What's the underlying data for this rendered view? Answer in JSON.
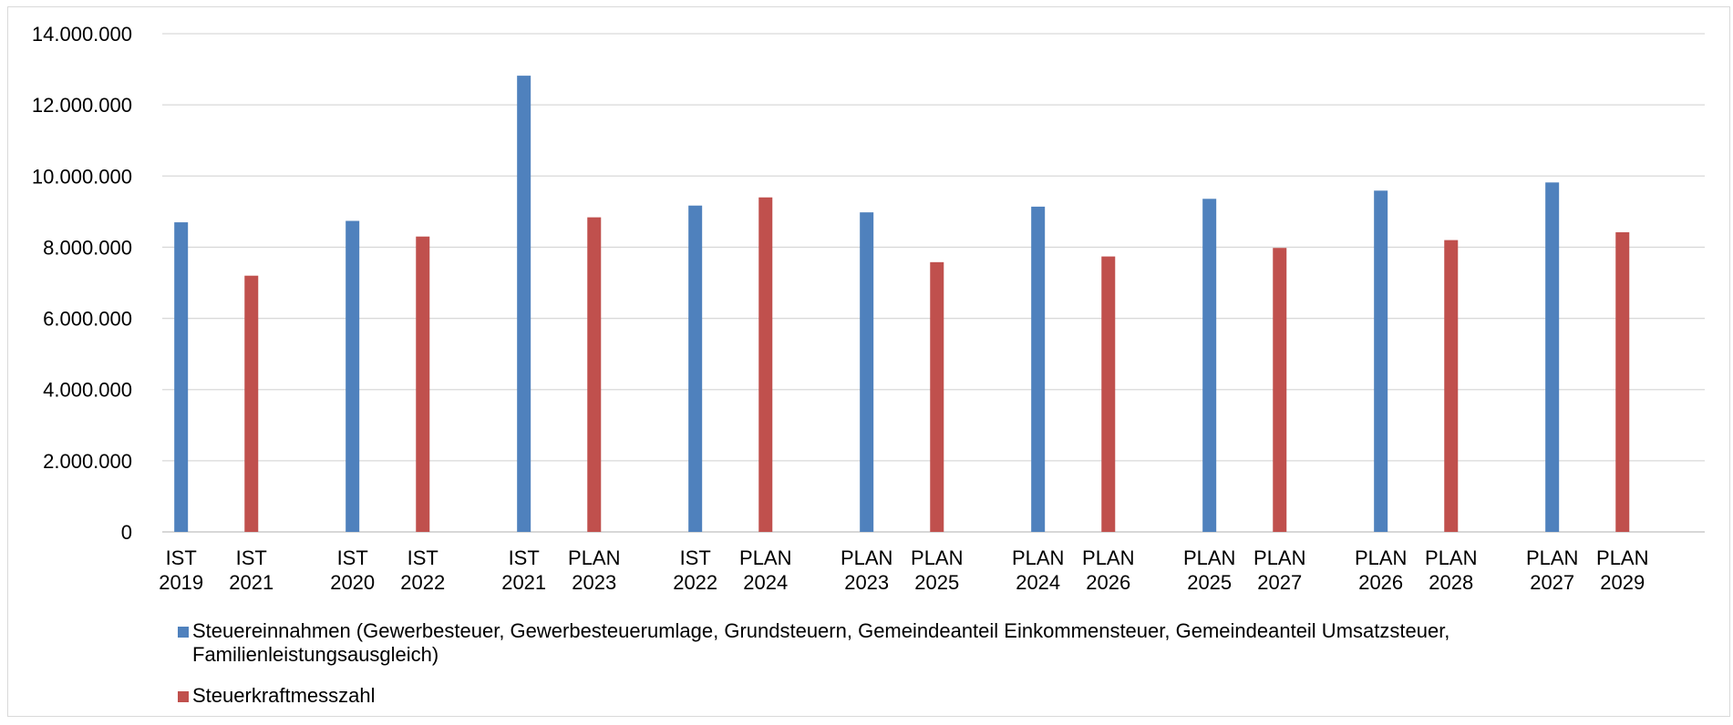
{
  "chart_data": {
    "type": "bar",
    "categories": [
      [
        "IST 2019",
        "IST 2021"
      ],
      [
        "IST 2020",
        "IST 2022"
      ],
      [
        "IST 2021",
        "PLAN 2023"
      ],
      [
        "IST 2022",
        "PLAN 2024"
      ],
      [
        "PLAN 2023",
        "PLAN 2025"
      ],
      [
        "PLAN 2024",
        "PLAN 2026"
      ],
      [
        "PLAN 2025",
        "PLAN 2027"
      ],
      [
        "PLAN 2026",
        "PLAN 2028"
      ],
      [
        "PLAN 2027",
        "PLAN 2029"
      ]
    ],
    "series": [
      {
        "name": "Steuereinnahmen (Gewerbesteuer, Gewerbesteuerumlage, Grundsteuern, Gemeindeanteil Einkommensteuer, Gemeindeanteil Umsatzsteuer, Familienleistungsausgleich)",
        "color": "#4f81bd",
        "values": [
          8700000,
          8740000,
          12820000,
          9170000,
          8980000,
          9140000,
          9360000,
          9590000,
          9820000
        ]
      },
      {
        "name": "Steuerkraftmesszahl",
        "color": "#c0504d",
        "values": [
          7200000,
          8300000,
          8840000,
          9400000,
          7580000,
          7740000,
          7980000,
          8200000,
          8420000
        ]
      }
    ],
    "ylim": [
      0,
      14000000
    ],
    "yticks": [
      0,
      2000000,
      4000000,
      6000000,
      8000000,
      10000000,
      12000000,
      14000000
    ],
    "ytick_labels": [
      "0",
      "2.000.000",
      "4.000.000",
      "6.000.000",
      "8.000.000",
      "10.000.000",
      "12.000.000",
      "14.000.000"
    ],
    "grid": true,
    "legend_position": "bottom",
    "xlabel": "",
    "ylabel": ""
  }
}
